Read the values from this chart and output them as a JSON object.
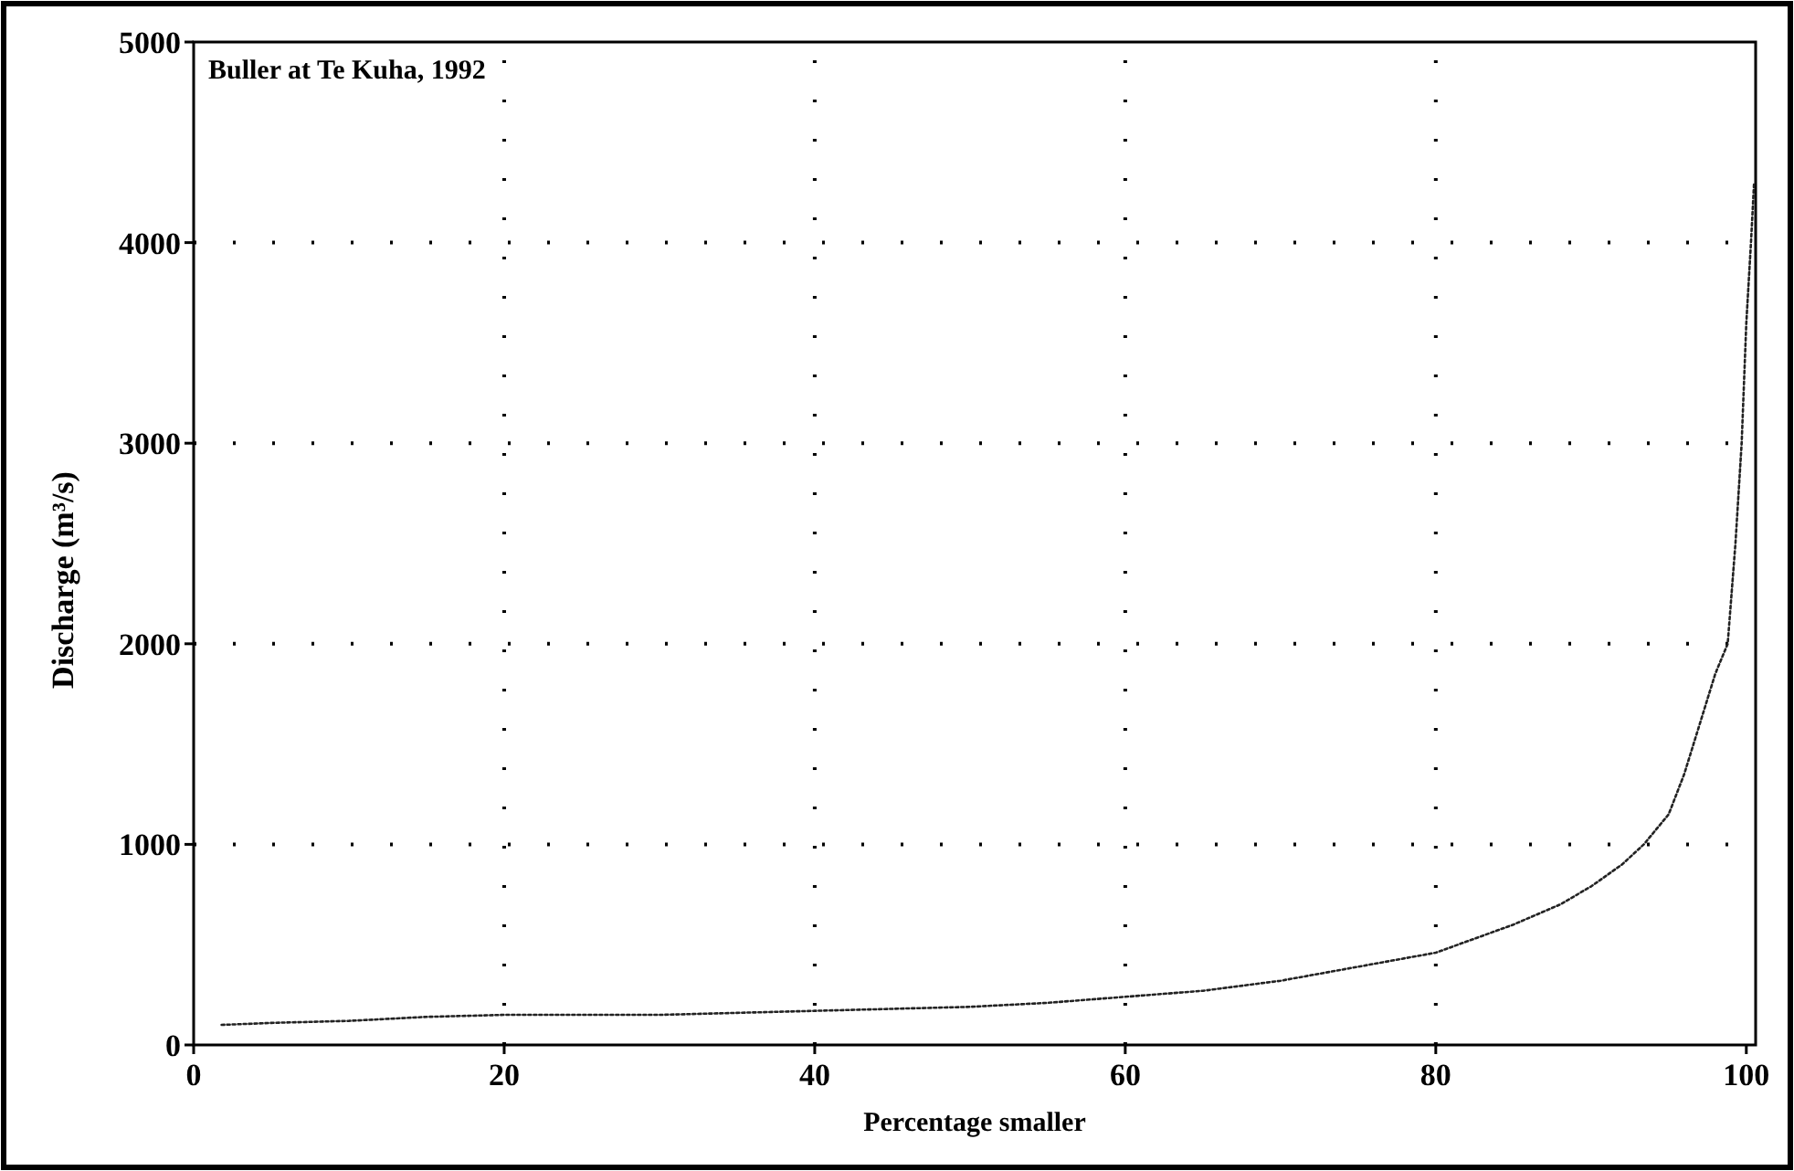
{
  "chart_data": {
    "type": "line",
    "title": "Buller at Te Kuha, 1992",
    "xlabel": "Percentage smaller",
    "ylabel": "Discharge (m³/s)",
    "xlim": [
      0,
      100.6
    ],
    "xticks": [
      0,
      20,
      40,
      60,
      80,
      100
    ],
    "ylim": [
      0,
      5000
    ],
    "yticks": [
      0,
      1000,
      2000,
      3000,
      4000,
      5000
    ],
    "grid": true,
    "line_style": "dotted",
    "series": [
      {
        "color": "#222222",
        "x": [
          1.8,
          5,
          10,
          15,
          20,
          25,
          30,
          35,
          40,
          45,
          50,
          55,
          60,
          65,
          70,
          75,
          80,
          85,
          88,
          90,
          92,
          93.4,
          95,
          96,
          97,
          98,
          98.8,
          99.3,
          99.7,
          100,
          100.3,
          100.5
        ],
        "values": [
          100,
          110,
          120,
          140,
          150,
          150,
          150,
          160,
          170,
          180,
          190,
          210,
          240,
          270,
          320,
          390,
          460,
          600,
          700,
          790,
          900,
          1000,
          1150,
          1350,
          1600,
          1850,
          2000,
          2500,
          3000,
          3600,
          4000,
          4300
        ]
      }
    ]
  }
}
